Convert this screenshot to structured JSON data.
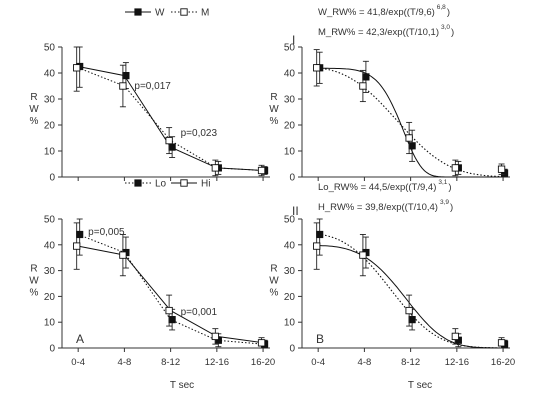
{
  "chart_data": [
    {
      "panel": "top-left",
      "type": "line",
      "categories": [
        "0-4",
        "4-8",
        "8-12",
        "12-16",
        "16-20"
      ],
      "ylim": [
        0,
        50
      ],
      "yticks": [
        "0",
        "10",
        "20",
        "30",
        "40",
        "50"
      ],
      "ylabel": "R W %",
      "legend": [
        "W",
        "M"
      ],
      "series": [
        {
          "name": "W",
          "marker": "filled-square",
          "line": "solid",
          "values": [
            42.5,
            39,
            11.5,
            3.5,
            2.5
          ],
          "err": [
            8,
            5,
            4,
            2.5,
            1.5
          ]
        },
        {
          "name": "M",
          "marker": "open-square",
          "line": "dotted",
          "values": [
            42,
            35,
            14,
            3.5,
            2.5
          ],
          "err": [
            9,
            8,
            5,
            3,
            2
          ]
        }
      ],
      "annotations": [
        {
          "text": "p=0,017",
          "x": "4-8",
          "y": 35
        },
        {
          "text": "p=0,023",
          "x": "8-12",
          "y": 17
        }
      ]
    },
    {
      "panel": "top-right",
      "type": "line",
      "categories": [
        "0-4",
        "4-8",
        "8-12",
        "12-16",
        "16-20"
      ],
      "ylim": [
        0,
        50
      ],
      "yticks": [
        "0",
        "10",
        "20",
        "30",
        "40",
        "50"
      ],
      "ylabel": "R W %",
      "panel_label": "I",
      "equations": [
        {
          "text": "W_RW% = 41,8/exp((T/9,6)",
          "exp": "6,8",
          "close": ")"
        },
        {
          "text": "M_RW% = 42,3/exp((T/10,1)",
          "exp": "3,0",
          "close": ")"
        }
      ],
      "fit_params": [
        {
          "a": 41.8,
          "t0": 9.6,
          "n": 6.8,
          "line": "solid"
        },
        {
          "a": 42.3,
          "t0": 10.1,
          "n": 3.0,
          "line": "dotted"
        }
      ],
      "series": [
        {
          "name": "W",
          "marker": "filled-square",
          "values": [
            42,
            38.5,
            12,
            3.5,
            1.5
          ],
          "err": [
            6,
            6,
            6,
            2.5,
            1.5
          ]
        },
        {
          "name": "M",
          "marker": "open-square",
          "values": [
            42,
            35,
            15,
            3.5,
            3
          ],
          "err": [
            7,
            6,
            6,
            3,
            2
          ]
        }
      ]
    },
    {
      "panel": "bottom-left",
      "type": "line",
      "categories": [
        "0-4",
        "4-8",
        "8-12",
        "12-16",
        "16-20"
      ],
      "ylim": [
        0,
        50
      ],
      "yticks": [
        "0",
        "10",
        "20",
        "30",
        "40",
        "50"
      ],
      "ylabel": "R W %",
      "xlabel": "T sec",
      "panel_label": "A",
      "legend": [
        "Lo",
        "Hi"
      ],
      "series": [
        {
          "name": "Lo",
          "marker": "filled-square",
          "line": "dotted",
          "values": [
            44,
            37,
            11,
            3,
            1.5
          ],
          "err": [
            8,
            6,
            4,
            2.5,
            1.5
          ]
        },
        {
          "name": "Hi",
          "marker": "open-square",
          "line": "solid",
          "values": [
            39.5,
            36,
            14.5,
            4.5,
            2
          ],
          "err": [
            9,
            8,
            6,
            3,
            2
          ]
        }
      ],
      "annotations": [
        {
          "text": "p=0,005",
          "x": "0-4",
          "y": 45
        },
        {
          "text": "p=0,001",
          "x": "8-12",
          "y": 14
        }
      ]
    },
    {
      "panel": "bottom-right",
      "type": "line",
      "categories": [
        "0-4",
        "4-8",
        "8-12",
        "12-16",
        "16-20"
      ],
      "ylim": [
        0,
        50
      ],
      "yticks": [
        "0",
        "10",
        "20",
        "30",
        "40",
        "50"
      ],
      "ylabel": "R W %",
      "xlabel": "T sec",
      "panel_label": "B",
      "roman_label": "II",
      "equations": [
        {
          "text": "Lo_RW% = 44,5/exp((T/9,4)",
          "exp": "3,1",
          "close": ")"
        },
        {
          "text": "H_RW% = 39,8/exp((T/10,4)",
          "exp": "3,9",
          "close": ")"
        }
      ],
      "fit_params": [
        {
          "a": 44.5,
          "t0": 9.4,
          "n": 3.1,
          "line": "dotted"
        },
        {
          "a": 39.8,
          "t0": 10.4,
          "n": 3.9,
          "line": "solid"
        }
      ],
      "series": [
        {
          "name": "Lo",
          "marker": "filled-square",
          "values": [
            44,
            37,
            11,
            3,
            1.5
          ],
          "err": [
            8,
            6,
            4,
            2.5,
            1.5
          ]
        },
        {
          "name": "Hi",
          "marker": "open-square",
          "values": [
            39.5,
            36,
            14.5,
            4.5,
            2
          ],
          "err": [
            9,
            8,
            6,
            3,
            2
          ]
        }
      ]
    }
  ]
}
